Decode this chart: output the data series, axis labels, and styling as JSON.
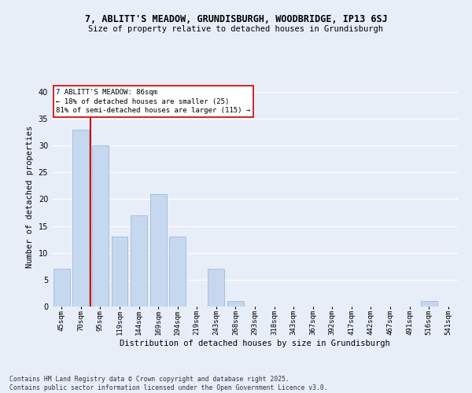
{
  "title": "7, ABLITT'S MEADOW, GRUNDISBURGH, WOODBRIDGE, IP13 6SJ",
  "subtitle": "Size of property relative to detached houses in Grundisburgh",
  "xlabel": "Distribution of detached houses by size in Grundisburgh",
  "ylabel": "Number of detached properties",
  "categories": [
    "45sqm",
    "70sqm",
    "95sqm",
    "119sqm",
    "144sqm",
    "169sqm",
    "194sqm",
    "219sqm",
    "243sqm",
    "268sqm",
    "293sqm",
    "318sqm",
    "343sqm",
    "367sqm",
    "392sqm",
    "417sqm",
    "442sqm",
    "467sqm",
    "491sqm",
    "516sqm",
    "541sqm"
  ],
  "values": [
    7,
    33,
    30,
    13,
    17,
    21,
    13,
    0,
    7,
    1,
    0,
    0,
    0,
    0,
    0,
    0,
    0,
    0,
    0,
    1,
    0
  ],
  "bar_color": "#c5d8f0",
  "bar_edge_color": "#a0b8d8",
  "vline_color": "#cc0000",
  "vline_x": 1.5,
  "annotation_title": "7 ABLITT'S MEADOW: 86sqm",
  "annotation_line2": "← 18% of detached houses are smaller (25)",
  "annotation_line3": "81% of semi-detached houses are larger (115) →",
  "annotation_box_color": "#ffffff",
  "annotation_box_edge": "#cc0000",
  "ylim": [
    0,
    41
  ],
  "yticks": [
    0,
    5,
    10,
    15,
    20,
    25,
    30,
    35,
    40
  ],
  "background_color": "#e8eef8",
  "grid_color": "#ffffff",
  "footer_line1": "Contains HM Land Registry data © Crown copyright and database right 2025.",
  "footer_line2": "Contains public sector information licensed under the Open Government Licence v3.0."
}
